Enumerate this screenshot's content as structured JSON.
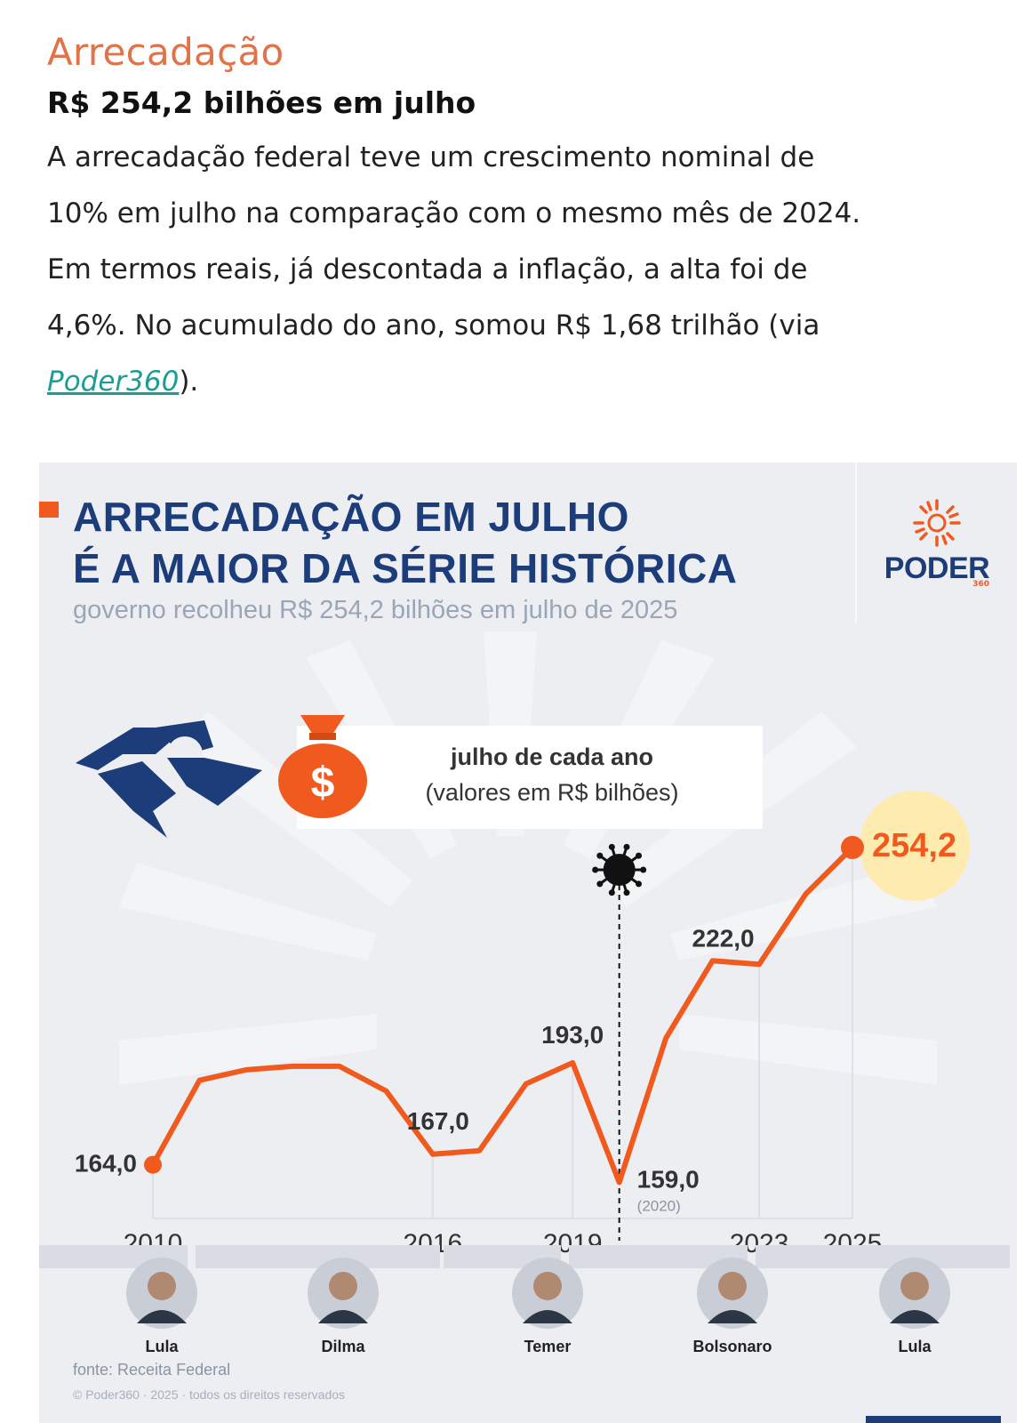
{
  "article": {
    "kicker": "Arrecadação",
    "headline": "R$ 254,2 bilhões em julho",
    "body_line1": "A arrecadação federal teve um crescimento nominal de",
    "body_line2": "10% em julho na comparação com o mesmo mês de 2024.",
    "body_line3": "Em termos reais, já descontada a inflação, a alta foi de",
    "body_line4": "4,6%. No acumulado do ano, somou R$ 1,68 trilhão (via",
    "link_text": "Poder360",
    "body_end": ")."
  },
  "infographic": {
    "title_line1": "ARRECADAÇÃO EM JULHO",
    "title_line2": "É A MAIOR DA SÉRIE HISTÓRICA",
    "subtitle": "governo recolheu R$ 254,2 bilhões em julho de 2025",
    "brand": "PODER",
    "brand_sub": "360",
    "legend_line1": "julho de cada ano",
    "legend_line2": "(valores em R$ bilhões)",
    "source": "fonte: Receita Federal",
    "copyright": "© Poder360 · 2025 · todos os direitos reservados",
    "colors": {
      "line": "#f05a1e",
      "title": "#1c3d7a",
      "highlight": "#fdebb0"
    },
    "icons": [
      "receita-federal-logo-icon",
      "money-bag-icon",
      "virus-icon",
      "poder360-sun-icon"
    ]
  },
  "chart_data": {
    "type": "line",
    "title": "ARRECADAÇÃO EM JULHO É A MAIOR DA SÉRIE HISTÓRICA",
    "x": [
      2010,
      2011,
      2012,
      2013,
      2014,
      2015,
      2016,
      2017,
      2018,
      2019,
      2020,
      2021,
      2022,
      2023,
      2024,
      2025
    ],
    "series": [
      {
        "values": [
          164.0,
          188.0,
          191.0,
          192.0,
          192.0,
          185.0,
          167.0,
          168.0,
          187.0,
          193.0,
          159.0,
          200.0,
          222.0,
          221.0,
          241.0,
          254.2
        ]
      }
    ],
    "xticks": [
      "2010",
      "2016",
      "2019",
      "2023",
      "2025"
    ],
    "point_labels": [
      {
        "year": 2010,
        "text": "164,0"
      },
      {
        "year": 2016,
        "text": "167,0"
      },
      {
        "year": 2019,
        "text": "193,0"
      },
      {
        "year": 2020,
        "text": "159,0",
        "note": "(2020)"
      },
      {
        "year": 2022,
        "text": "222,0"
      },
      {
        "year": 2025,
        "text": "254,2"
      }
    ],
    "annotation_year": 2020,
    "ylim": [
      150,
      260
    ]
  },
  "presidents": [
    {
      "name": "Lula",
      "from": 2010,
      "to": 2010.9
    },
    {
      "name": "Dilma",
      "from": 2011,
      "to": 2016.3
    },
    {
      "name": "Temer",
      "from": 2016.3,
      "to": 2018.9
    },
    {
      "name": "Bolsonaro",
      "from": 2019,
      "to": 2022.9
    },
    {
      "name": "Lula",
      "from": 2023,
      "to": 2025
    }
  ]
}
